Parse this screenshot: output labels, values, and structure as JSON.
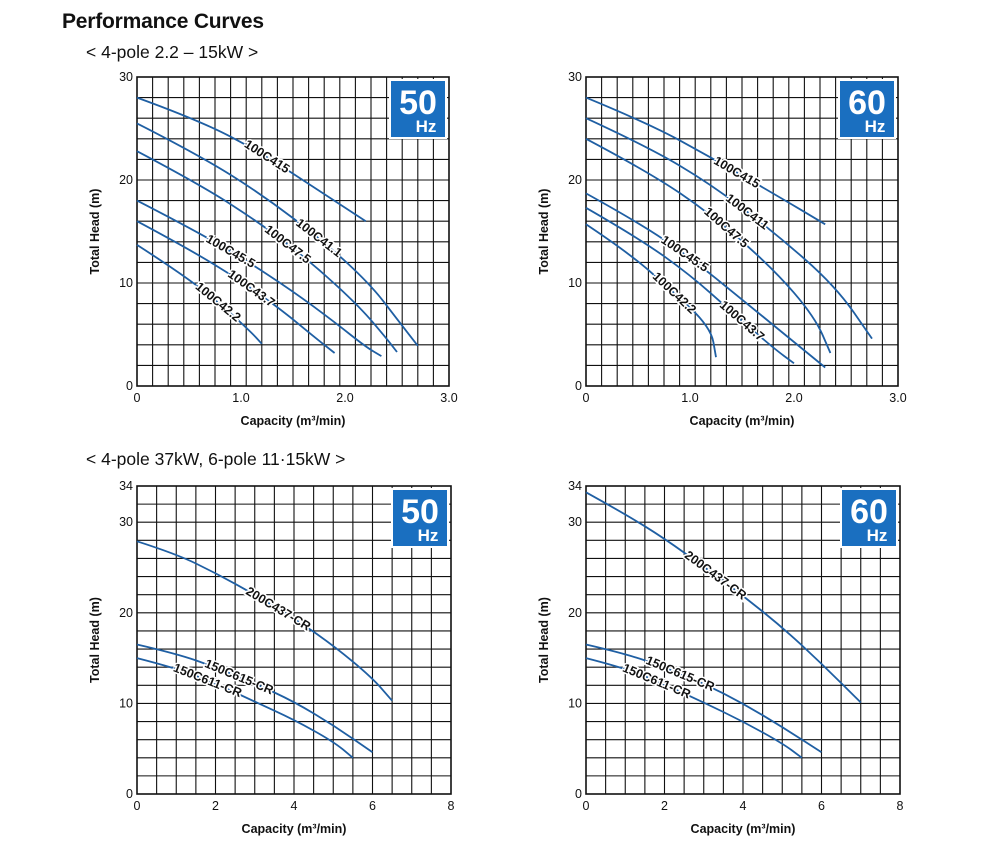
{
  "page": {
    "title": "Performance Curves",
    "section_1": "< 4-pole  2.2 – 15kW >",
    "section_2": "< 4-pole  37kW, 6-pole  11·15kW >"
  },
  "colors": {
    "curve": "#1f5fa3",
    "badge": "#1a6fc0",
    "grid": "#111111"
  },
  "chart_data": [
    {
      "type": "line",
      "badge": {
        "freq": "50",
        "unit": "Hz"
      },
      "xlabel": "Capacity (m³/min)",
      "ylabel": "Total Head (m)",
      "xlim": [
        0,
        3.0
      ],
      "ylim": [
        0,
        30
      ],
      "xticks": [
        "0",
        "1.0",
        "2.0",
        "3.0"
      ],
      "yticks": [
        {
          "v": 0,
          "t": "0"
        },
        {
          "v": 10,
          "t": "10"
        },
        {
          "v": 20,
          "t": "20"
        },
        {
          "v": 30,
          "t": "30"
        }
      ],
      "grid": true,
      "series": [
        {
          "name": "100C415",
          "points": [
            [
              0,
              28
            ],
            [
              0.6,
              25.8
            ],
            [
              1.2,
              22.6
            ],
            [
              1.7,
              19.3
            ],
            [
              2.2,
              16
            ]
          ],
          "label_at": 1.25
        },
        {
          "name": "100C41.1",
          "points": [
            [
              0,
              25.5
            ],
            [
              0.6,
              22.4
            ],
            [
              1.2,
              18.6
            ],
            [
              1.8,
              14
            ],
            [
              2.25,
              9.8
            ],
            [
              2.5,
              6.5
            ],
            [
              2.7,
              3.9
            ]
          ],
          "label_at": 1.75
        },
        {
          "name": "100C47.5",
          "points": [
            [
              0,
              22.8
            ],
            [
              0.6,
              19.6
            ],
            [
              1.2,
              15.7
            ],
            [
              1.7,
              11.8
            ],
            [
              2.15,
              7.6
            ],
            [
              2.4,
              4.6
            ],
            [
              2.5,
              3.3
            ]
          ],
          "label_at": 1.45
        },
        {
          "name": "100C45.5",
          "points": [
            [
              0,
              18
            ],
            [
              0.5,
              15.4
            ],
            [
              1.0,
              12.5
            ],
            [
              1.5,
              9.2
            ],
            [
              1.9,
              6.2
            ],
            [
              2.2,
              3.8
            ],
            [
              2.35,
              2.9
            ]
          ],
          "label_at": 0.9
        },
        {
          "name": "100C43.7",
          "points": [
            [
              0,
              16
            ],
            [
              0.5,
              13.3
            ],
            [
              1.0,
              10.2
            ],
            [
              1.4,
              7.3
            ],
            [
              1.7,
              4.8
            ],
            [
              1.9,
              3.2
            ]
          ],
          "label_at": 1.1
        },
        {
          "name": "100C42.2",
          "points": [
            [
              0,
              13.7
            ],
            [
              0.4,
              11.1
            ],
            [
              0.8,
              8.0
            ],
            [
              1.1,
              5.2
            ],
            [
              1.2,
              4.1
            ]
          ],
          "label_at": 0.78
        }
      ]
    },
    {
      "type": "line",
      "badge": {
        "freq": "60",
        "unit": "Hz"
      },
      "xlabel": "Capacity (m³/min)",
      "ylabel": "Total Head (m)",
      "xlim": [
        0,
        3.0
      ],
      "ylim": [
        0,
        30
      ],
      "xticks": [
        "0",
        "1.0",
        "2.0",
        "3.0"
      ],
      "yticks": [
        {
          "v": 0,
          "t": "0"
        },
        {
          "v": 10,
          "t": "10"
        },
        {
          "v": 20,
          "t": "20"
        },
        {
          "v": 30,
          "t": "30"
        }
      ],
      "grid": true,
      "series": [
        {
          "name": "100C415",
          "points": [
            [
              0,
              28
            ],
            [
              0.6,
              25.5
            ],
            [
              1.2,
              22.2
            ],
            [
              1.8,
              18.7
            ],
            [
              2.3,
              15.7
            ]
          ],
          "label_at": 1.45
        },
        {
          "name": "100C411",
          "points": [
            [
              0,
              26
            ],
            [
              0.6,
              23.2
            ],
            [
              1.2,
              19.6
            ],
            [
              1.8,
              15
            ],
            [
              2.4,
              9.7
            ],
            [
              2.75,
              4.6
            ]
          ],
          "label_at": 1.55
        },
        {
          "name": "100C47.5",
          "points": [
            [
              0,
              24
            ],
            [
              0.6,
              20.8
            ],
            [
              1.2,
              16.7
            ],
            [
              1.8,
              11.4
            ],
            [
              2.2,
              6.7
            ],
            [
              2.35,
              3.2
            ]
          ],
          "label_at": 1.35
        },
        {
          "name": "100C45.5",
          "points": [
            [
              0,
              18.7
            ],
            [
              0.5,
              15.9
            ],
            [
              1.0,
              12.5
            ],
            [
              1.5,
              8.4
            ],
            [
              1.9,
              5.1
            ],
            [
              2.3,
              1.8
            ]
          ],
          "label_at": 0.95
        },
        {
          "name": "100C43.7",
          "points": [
            [
              0,
              17.3
            ],
            [
              0.5,
              14.4
            ],
            [
              1.0,
              10.8
            ],
            [
              1.4,
              7.2
            ],
            [
              1.8,
              3.7
            ],
            [
              2.0,
              2.2
            ]
          ],
          "label_at": 1.5
        },
        {
          "name": "100C42.2",
          "points": [
            [
              0,
              15.7
            ],
            [
              0.4,
              13.0
            ],
            [
              0.8,
              9.5
            ],
            [
              1.2,
              5.7
            ],
            [
              1.25,
              2.8
            ]
          ],
          "label_at": 0.85
        }
      ]
    },
    {
      "type": "line",
      "badge": {
        "freq": "50",
        "unit": "Hz"
      },
      "xlabel": "Capacity (m³/min)",
      "ylabel": "Total Head (m)",
      "xlim": [
        0,
        8
      ],
      "ylim": [
        0,
        34
      ],
      "xticks": [
        "0",
        "2",
        "4",
        "6",
        "8"
      ],
      "yticks": [
        {
          "v": 0,
          "t": "0"
        },
        {
          "v": 10,
          "t": "10"
        },
        {
          "v": 20,
          "t": "20"
        },
        {
          "v": 30,
          "t": "30"
        },
        {
          "v": 34,
          "t": "34"
        }
      ],
      "grid": true,
      "series": [
        {
          "name": "200C437-CR",
          "points": [
            [
              0,
              27.9
            ],
            [
              1,
              26.5
            ],
            [
              2,
              24.4
            ],
            [
              3,
              22.0
            ],
            [
              4,
              19.4
            ],
            [
              5,
              16.4
            ],
            [
              6,
              12.8
            ],
            [
              6.5,
              10.3
            ]
          ],
          "label_at": 3.6
        },
        {
          "name": "150C615-CR",
          "points": [
            [
              0,
              16.5
            ],
            [
              1,
              15.5
            ],
            [
              2,
              14.0
            ],
            [
              3,
              12.2
            ],
            [
              4,
              10.2
            ],
            [
              5,
              7.6
            ],
            [
              6,
              4.6
            ]
          ],
          "label_at": 2.6
        },
        {
          "name": "150C611-CR",
          "points": [
            [
              0,
              15.0
            ],
            [
              1,
              13.9
            ],
            [
              2,
              12.2
            ],
            [
              3,
              10.2
            ],
            [
              4,
              8.2
            ],
            [
              5,
              5.8
            ],
            [
              5.5,
              4.0
            ]
          ],
          "label_at": 1.8
        }
      ]
    },
    {
      "type": "line",
      "badge": {
        "freq": "60",
        "unit": "Hz"
      },
      "xlabel": "Capacity (m³/min)",
      "ylabel": "Total Head (m)",
      "xlim": [
        0,
        8
      ],
      "ylim": [
        0,
        34
      ],
      "xticks": [
        "0",
        "2",
        "4",
        "6",
        "8"
      ],
      "yticks": [
        {
          "v": 0,
          "t": "0"
        },
        {
          "v": 10,
          "t": "10"
        },
        {
          "v": 20,
          "t": "20"
        },
        {
          "v": 30,
          "t": "30"
        },
        {
          "v": 34,
          "t": "34"
        }
      ],
      "grid": true,
      "series": [
        {
          "name": "200C437-CR",
          "points": [
            [
              0,
              33.3
            ],
            [
              1,
              30.9
            ],
            [
              2,
              28.2
            ],
            [
              3,
              25.1
            ],
            [
              4,
              21.9
            ],
            [
              5,
              18.4
            ],
            [
              6,
              14.4
            ],
            [
              7,
              10.1
            ]
          ],
          "label_at": 3.3
        },
        {
          "name": "150C615-CR",
          "points": [
            [
              0,
              16.5
            ],
            [
              1,
              15.5
            ],
            [
              2,
              14.0
            ],
            [
              3,
              12.2
            ],
            [
              4,
              10.0
            ],
            [
              5,
              7.4
            ],
            [
              6,
              4.6
            ]
          ],
          "label_at": 2.4
        },
        {
          "name": "150C611-CR",
          "points": [
            [
              0,
              15.0
            ],
            [
              1,
              13.9
            ],
            [
              2,
              12.1
            ],
            [
              3,
              10.1
            ],
            [
              4,
              8.0
            ],
            [
              5,
              5.6
            ],
            [
              5.5,
              4.0
            ]
          ],
          "label_at": 1.8
        }
      ]
    }
  ]
}
